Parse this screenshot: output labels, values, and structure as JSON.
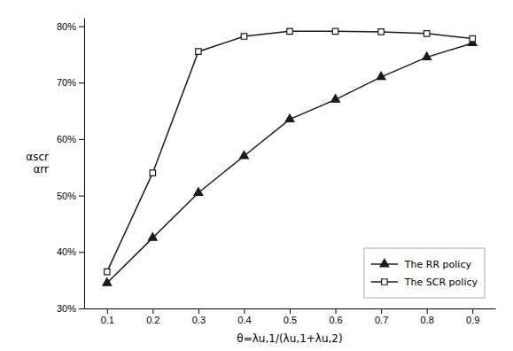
{
  "chart_data": {
    "type": "line",
    "x_label": "θ=λu,1/(λu,1+λu,2)",
    "y_label": "αscr\nαrr",
    "x": [
      0.1,
      0.2,
      0.3,
      0.4,
      0.5,
      0.6,
      0.7,
      0.8,
      0.9
    ],
    "series": [
      {
        "name": "The RR policy",
        "color": "#1a1a1a",
        "marker": "triangle",
        "values": [
          0.345,
          0.425,
          0.505,
          0.57,
          0.635,
          0.67,
          0.71,
          0.745,
          0.77
        ]
      },
      {
        "name": "The SCR policy",
        "color": "#1a1a1a",
        "marker": "square-open",
        "values": [
          0.365,
          0.54,
          0.755,
          0.782,
          0.791,
          0.791,
          0.79,
          0.787,
          0.778
        ]
      }
    ],
    "xlim": [
      0.05,
      0.95
    ],
    "ylim": [
      0.3,
      0.815
    ],
    "xticks": [
      0.1,
      0.2,
      0.3,
      0.4,
      0.5,
      0.6,
      0.7,
      0.8,
      0.9
    ],
    "yticks": [
      {
        "value": 0.3,
        "label": "30%"
      },
      {
        "value": 0.4,
        "label": "40%"
      },
      {
        "value": 0.5,
        "label": "50%"
      },
      {
        "value": 0.6,
        "label": "60%"
      },
      {
        "value": 0.7,
        "label": "70%"
      },
      {
        "value": 0.8,
        "label": "80%"
      }
    ],
    "grid": false,
    "legend": "lower right"
  }
}
